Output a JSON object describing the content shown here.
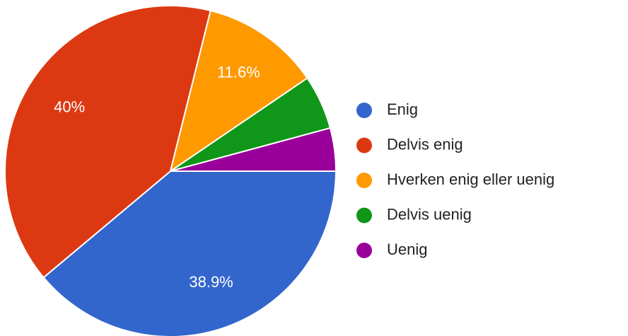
{
  "chart_data": {
    "type": "pie",
    "categories": [
      "Enig",
      "Delvis enig",
      "Hverken enig eller uenig",
      "Delvis uenig",
      "Uenig"
    ],
    "values": [
      38.9,
      40,
      11.6,
      5.3,
      4.2
    ],
    "value_labels": [
      "38.9%",
      "40%",
      "11.6%",
      null,
      null
    ],
    "colors": [
      "#3366cc",
      "#dc3912",
      "#ff9900",
      "#109618",
      "#990099"
    ],
    "legend": "right"
  }
}
